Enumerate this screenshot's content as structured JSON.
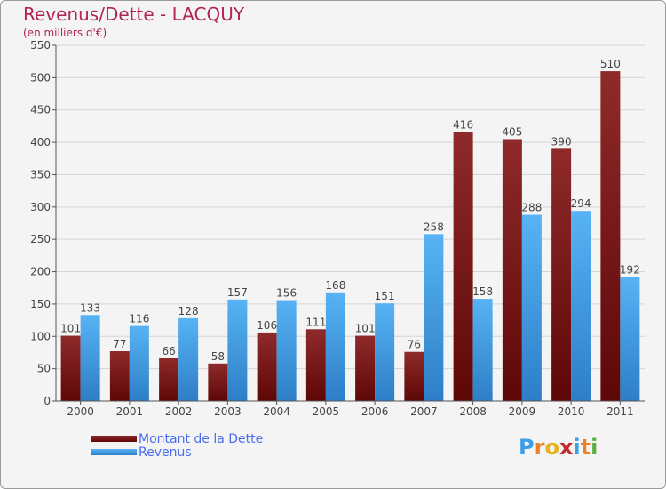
{
  "chart_data": {
    "type": "bar",
    "title": "Revenus/Dette - LACQUY",
    "subtitle": "(en milliers d'€)",
    "xlabel": "",
    "ylabel": "",
    "ylim": [
      0,
      550
    ],
    "yticks": [
      0,
      50,
      100,
      150,
      200,
      250,
      300,
      350,
      400,
      450,
      500,
      550
    ],
    "grid": true,
    "categories": [
      "2000",
      "2001",
      "2002",
      "2003",
      "2004",
      "2005",
      "2006",
      "2007",
      "2008",
      "2009",
      "2010",
      "2011"
    ],
    "series": [
      {
        "name": "Montant de la Dette",
        "color": "#7a1515",
        "values": [
          101,
          77,
          66,
          58,
          106,
          111,
          101,
          76,
          416,
          405,
          390,
          510
        ]
      },
      {
        "name": "Revenus",
        "color": "#3d9ee8",
        "values": [
          133,
          116,
          128,
          157,
          156,
          168,
          151,
          258,
          158,
          288,
          294,
          192
        ]
      }
    ],
    "legend_position": "bottom-left"
  },
  "logo": {
    "letters": [
      "P",
      "r",
      "o",
      "x",
      "i",
      "t",
      "i"
    ],
    "colors": [
      "#3d9ee8",
      "#e8812a",
      "#e8b21e",
      "#c22b2b",
      "#3d9ee8",
      "#e8812a",
      "#5cb040"
    ]
  }
}
